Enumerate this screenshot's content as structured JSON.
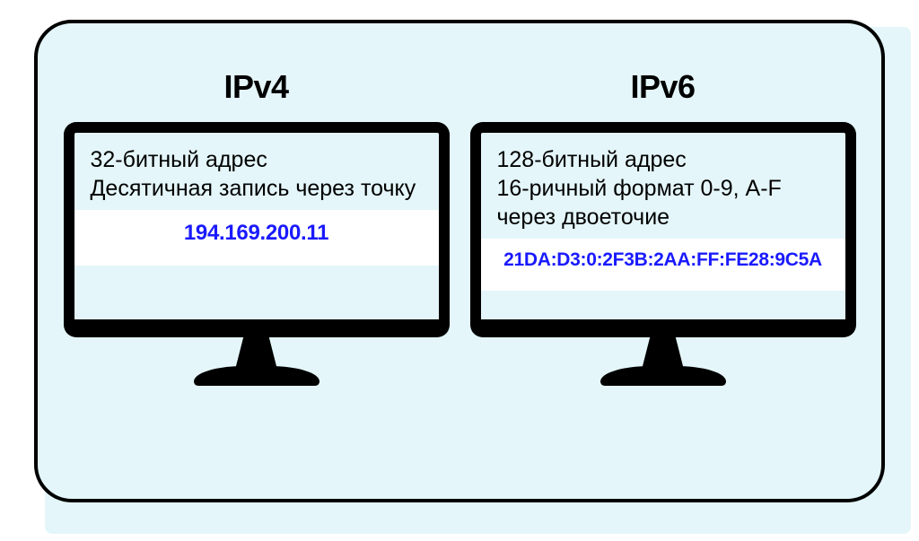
{
  "infographic": {
    "type": "infographic",
    "background_color": "#e4f6f9",
    "border_color": "#000000",
    "border_width": 4,
    "border_radius": 42,
    "text_color": "#000000",
    "address_color": "#1a1aff",
    "strip_bg": "#ffffff",
    "monitor_frame_color": "#000000",
    "title_fontsize": 36,
    "title_fontweight": 700,
    "desc_fontsize": 25,
    "addr_fontsize_ipv4": 24,
    "addr_fontsize_ipv6": 21,
    "panels": {
      "left": {
        "title": "IPv4",
        "desc_line1": "32-битный адрес",
        "desc_line2": "Десятичная запись через точку",
        "address": "194.169.200.11"
      },
      "right": {
        "title": "IPv6",
        "desc_line1": "128-битный адрес",
        "desc_line2": "16-ричный формат 0-9, A-F через двоеточие",
        "address": "21DA:D3:0:2F3B:2AA:FF:FE28:9C5A"
      }
    }
  }
}
